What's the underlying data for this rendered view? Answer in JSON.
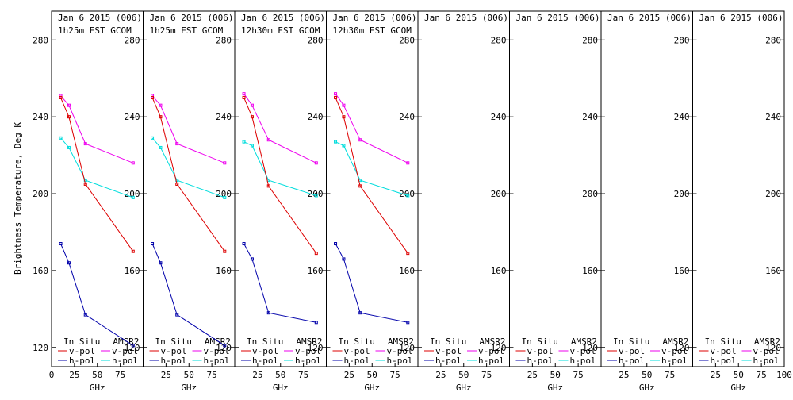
{
  "ylabel": "Brightness Temperature, Deg K",
  "chart_data": {
    "type": "line",
    "xlabel": "GHz",
    "xlim": [
      0,
      100
    ],
    "ylim": [
      110,
      295
    ],
    "yticks": [
      120,
      160,
      200,
      240,
      280
    ],
    "xticks": [
      0,
      25,
      50,
      75,
      100
    ],
    "legend": {
      "insitu_title": "In Situ",
      "amsr2_title": "AMSR2",
      "vpol": "v-pol",
      "hpol": "h-pol"
    },
    "colors": {
      "insitu_v": "#dd0000",
      "insitu_h": "#0000aa",
      "amsr2_v": "#ee00ee",
      "amsr2_h": "#00dddd"
    },
    "panels": [
      {
        "title1": "Jan 6 2015 (006)",
        "title2": "1h25m EST GCOM",
        "series": {
          "amsr2_v": {
            "x": [
              10,
              19,
              37,
              89
            ],
            "y": [
              251,
              246,
              226,
              216
            ]
          },
          "insitu_v": {
            "x": [
              10,
              19,
              37,
              89
            ],
            "y": [
              250,
              240,
              205,
              170
            ]
          },
          "amsr2_h": {
            "x": [
              10,
              19,
              37,
              89
            ],
            "y": [
              229,
              224,
              207,
              198
            ]
          },
          "insitu_h": {
            "x": [
              10,
              19,
              37,
              89
            ],
            "y": [
              174,
              164,
              137,
              121
            ]
          }
        }
      },
      {
        "title1": "Jan 6 2015 (006)",
        "title2": "1h25m EST GCOM",
        "series": {
          "amsr2_v": {
            "x": [
              10,
              19,
              37,
              89
            ],
            "y": [
              251,
              246,
              226,
              216
            ]
          },
          "insitu_v": {
            "x": [
              10,
              19,
              37,
              89
            ],
            "y": [
              250,
              240,
              205,
              170
            ]
          },
          "amsr2_h": {
            "x": [
              10,
              19,
              37,
              89
            ],
            "y": [
              229,
              224,
              207,
              198
            ]
          },
          "insitu_h": {
            "x": [
              10,
              19,
              37,
              89
            ],
            "y": [
              174,
              164,
              137,
              121
            ]
          }
        }
      },
      {
        "title1": "Jan 6 2015 (006)",
        "title2": "12h30m EST GCOM",
        "series": {
          "amsr2_v": {
            "x": [
              10,
              19,
              37,
              89
            ],
            "y": [
              252,
              246,
              228,
              216
            ]
          },
          "insitu_v": {
            "x": [
              10,
              19,
              37,
              89
            ],
            "y": [
              250,
              240,
              204,
              169
            ]
          },
          "amsr2_h": {
            "x": [
              10,
              19,
              37,
              89
            ],
            "y": [
              227,
              225,
              207,
              199
            ]
          },
          "insitu_h": {
            "x": [
              10,
              19,
              37,
              89
            ],
            "y": [
              174,
              166,
              138,
              133
            ]
          }
        }
      },
      {
        "title1": "Jan 6 2015 (006)",
        "title2": "12h30m EST GCOM",
        "series": {
          "amsr2_v": {
            "x": [
              10,
              19,
              37,
              89
            ],
            "y": [
              252,
              246,
              228,
              216
            ]
          },
          "insitu_v": {
            "x": [
              10,
              19,
              37,
              89
            ],
            "y": [
              250,
              240,
              204,
              169
            ]
          },
          "amsr2_h": {
            "x": [
              10,
              19,
              37,
              89
            ],
            "y": [
              227,
              225,
              207,
              199
            ]
          },
          "insitu_h": {
            "x": [
              10,
              19,
              37,
              89
            ],
            "y": [
              174,
              166,
              138,
              133
            ]
          }
        }
      },
      {
        "title1": "Jan 6 2015 (006)",
        "title2": "",
        "series": {}
      },
      {
        "title1": "Jan 6 2015 (006)",
        "title2": "",
        "series": {}
      },
      {
        "title1": "Jan 6 2015 (006)",
        "title2": "",
        "series": {}
      },
      {
        "title1": "Jan 6 2015 (006)",
        "title2": "",
        "series": {}
      }
    ]
  }
}
